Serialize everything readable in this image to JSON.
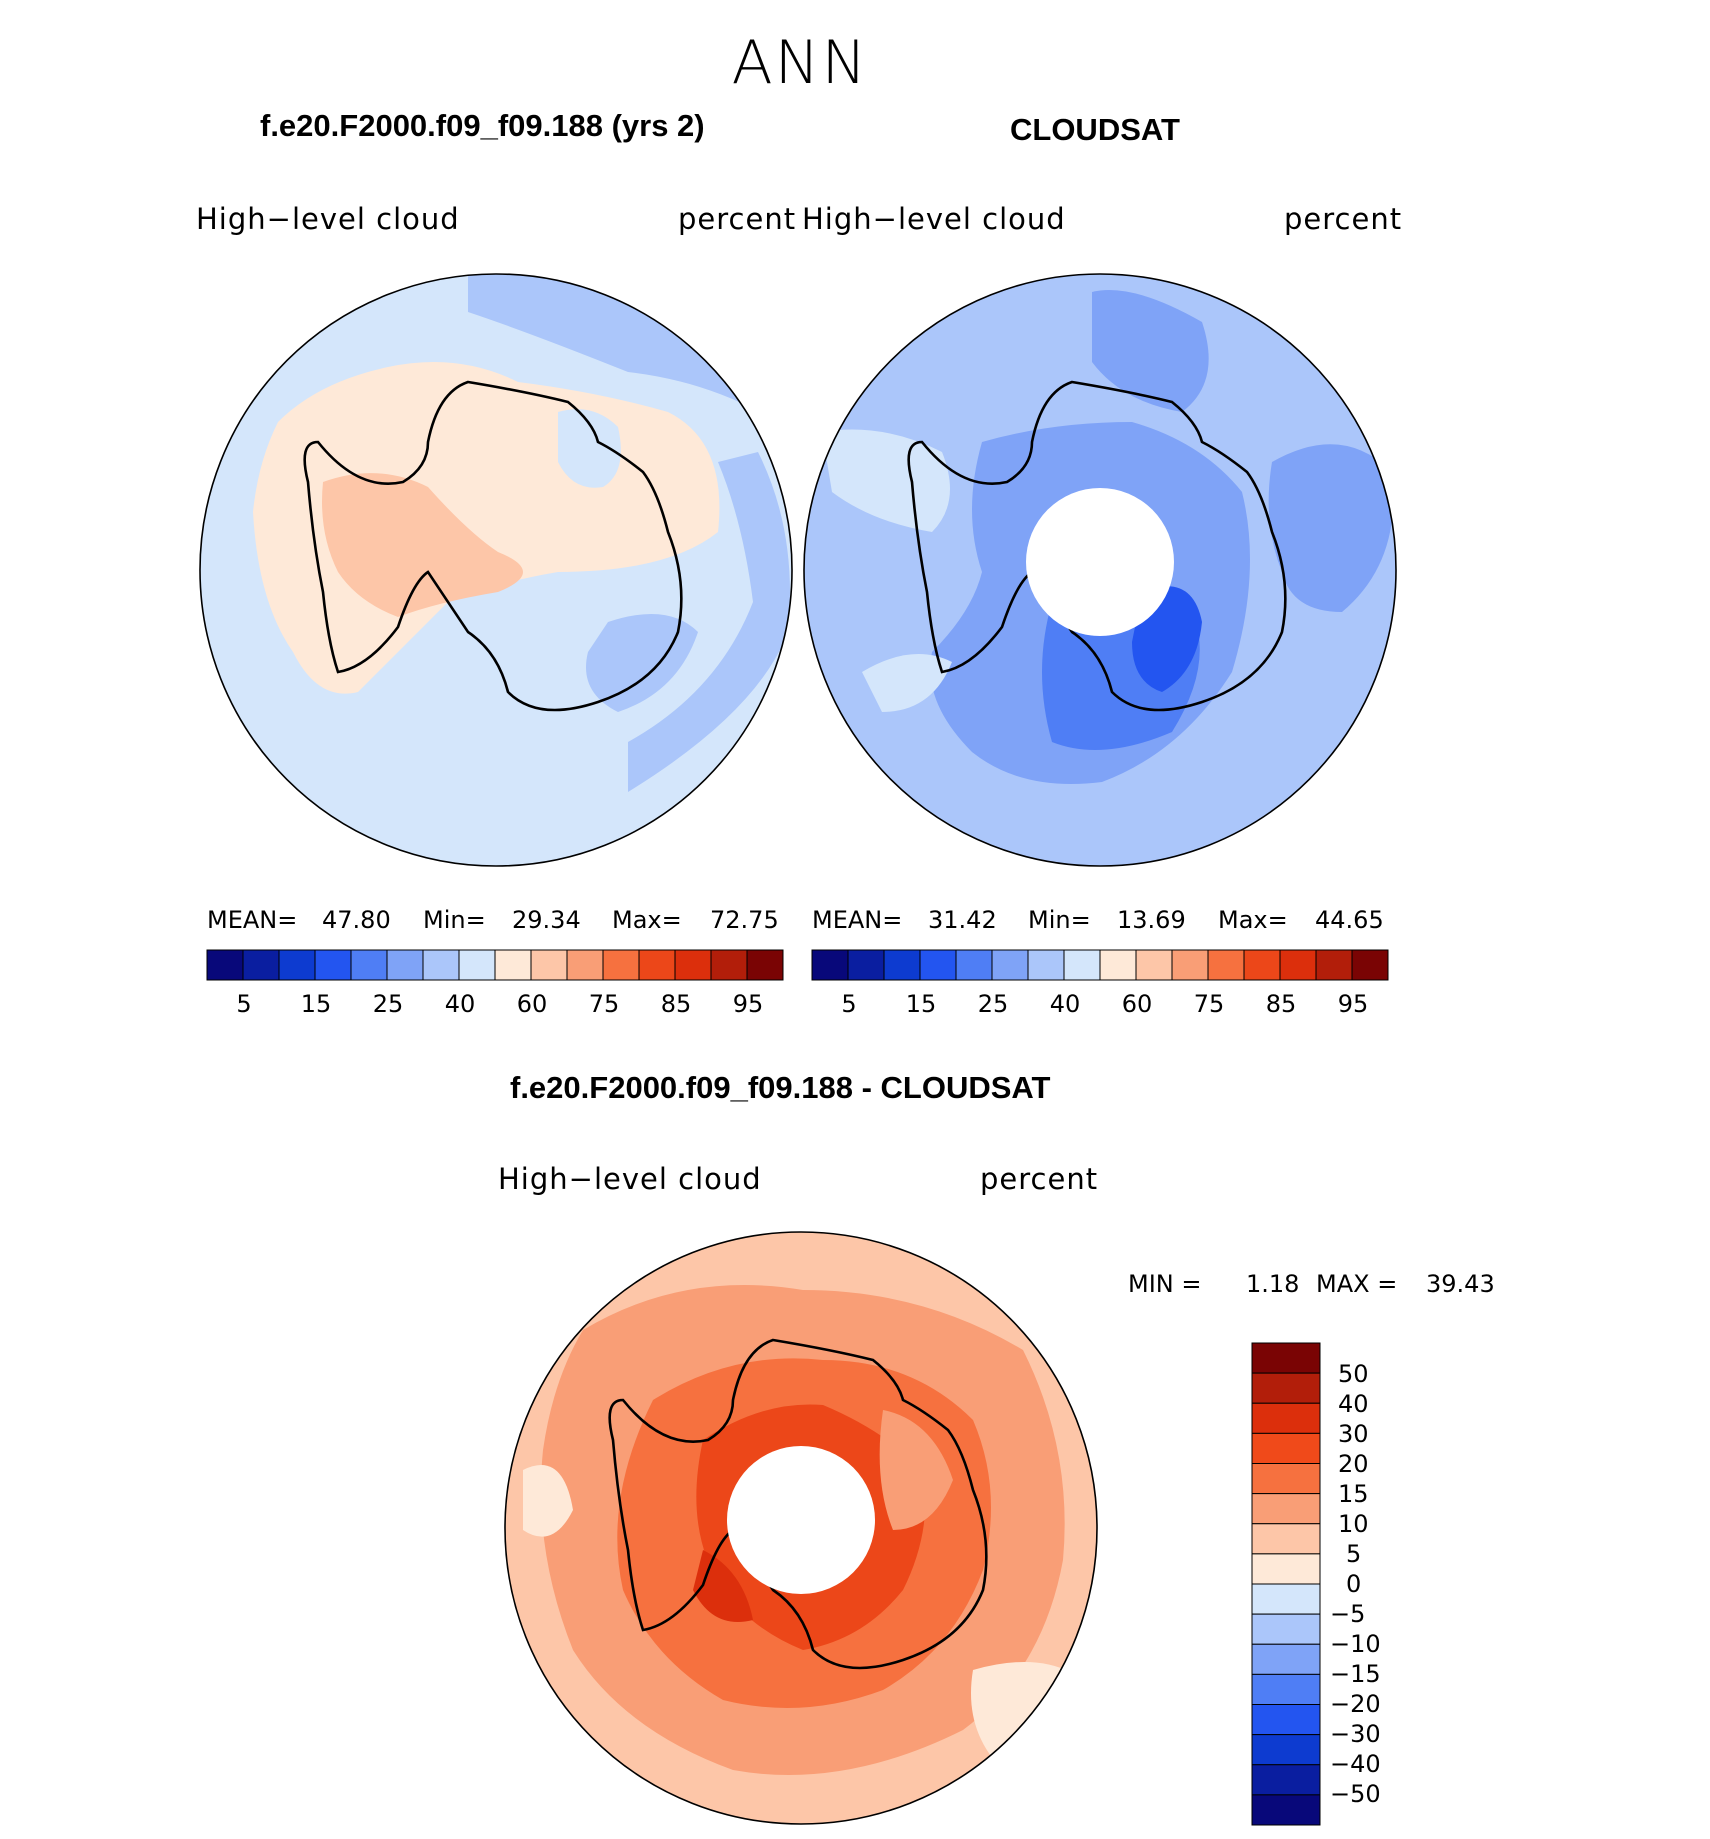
{
  "title": "ANN",
  "panels": [
    {
      "case_title": "f.e20.F2000.f09_f09.188 (yrs 2)",
      "variable": "High−level cloud",
      "units": "percent",
      "stats": {
        "mean_label": "MEAN=",
        "mean": "47.80",
        "min_label": "Min=",
        "min": "29.34",
        "max_label": "Max=",
        "max": "72.75"
      },
      "colorbar_ticks": [
        "5",
        "15",
        "25",
        "40",
        "60",
        "75",
        "85",
        "95"
      ]
    },
    {
      "case_title": "CLOUDSAT",
      "variable": "High−level cloud",
      "units": "percent",
      "stats": {
        "mean_label": "MEAN=",
        "mean": "31.42",
        "min_label": "Min=",
        "min": "13.69",
        "max_label": "Max=",
        "max": "44.65"
      },
      "colorbar_ticks": [
        "5",
        "15",
        "25",
        "40",
        "60",
        "75",
        "85",
        "95"
      ]
    }
  ],
  "diff_panel": {
    "case_title": "f.e20.F2000.f09_f09.188 - CLOUDSAT",
    "variable": "High−level cloud",
    "units": "percent",
    "stats": {
      "min_label": "MIN =",
      "min": "1.18",
      "max_label": "MAX =",
      "max": "39.43"
    },
    "colorbar_ticks": [
      "50",
      "40",
      "30",
      "20",
      "15",
      "10",
      "5",
      "0",
      "−5",
      "−10",
      "−15",
      "−20",
      "−30",
      "−40",
      "−50"
    ]
  },
  "palette": {
    "sequential": [
      "#08087a",
      "#0a1ea0",
      "#0d3bd0",
      "#2355f0",
      "#4f7ef5",
      "#7fa3f7",
      "#abc6fa",
      "#d4e6fb",
      "#fee9d8",
      "#fdc6a8",
      "#f99e76",
      "#f6713f",
      "#ec4719",
      "#dc2f0c",
      "#b21e0a",
      "#7a0404"
    ],
    "diverging": [
      "#7a0404",
      "#b21e0a",
      "#dc2f0c",
      "#f04a1a",
      "#f6713f",
      "#f99e76",
      "#fdc6a8",
      "#fee9d8",
      "#d4e6fb",
      "#abc6fa",
      "#7fa3f7",
      "#4f7ef5",
      "#2355f0",
      "#0d3bd0",
      "#0a1ea0",
      "#08087a"
    ]
  }
}
